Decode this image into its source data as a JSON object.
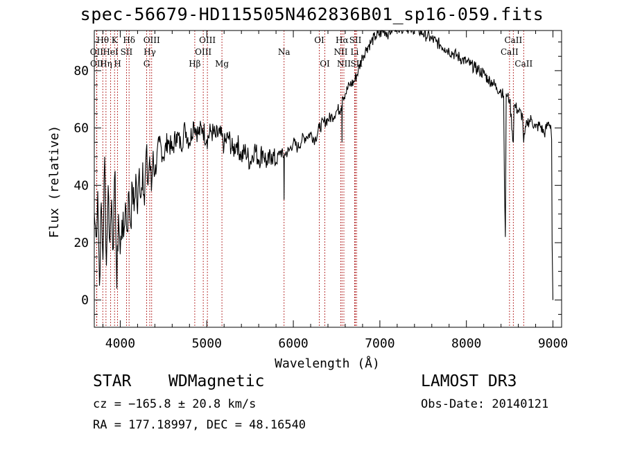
{
  "chart_data": {
    "type": "line",
    "title": "spec-56679-HD115505N462836B01_sp16-059.fits",
    "xlabel": "Wavelength (Å)",
    "ylabel": "Flux (relative)",
    "xlim": [
      3700,
      9100
    ],
    "ylim": [
      -9.5,
      94
    ],
    "x_ticks": [
      4000,
      5000,
      6000,
      7000,
      8000,
      9000
    ],
    "y_ticks": [
      0,
      20,
      40,
      60,
      80
    ],
    "series": [
      {
        "name": "flux",
        "x": [
          3700,
          3720,
          3740,
          3760,
          3780,
          3800,
          3820,
          3840,
          3860,
          3880,
          3900,
          3920,
          3940,
          3960,
          3980,
          4000,
          4020,
          4040,
          4060,
          4080,
          4100,
          4120,
          4140,
          4160,
          4180,
          4200,
          4220,
          4240,
          4260,
          4280,
          4300,
          4320,
          4340,
          4360,
          4380,
          4400,
          4450,
          4500,
          4550,
          4600,
          4650,
          4700,
          4750,
          4800,
          4850,
          4900,
          4950,
          5000,
          5050,
          5100,
          5150,
          5200,
          5250,
          5300,
          5350,
          5400,
          5450,
          5500,
          5550,
          5600,
          5650,
          5700,
          5750,
          5800,
          5850,
          5890,
          5893,
          5896,
          5900,
          5950,
          6000,
          6050,
          6100,
          6150,
          6200,
          6250,
          6300,
          6350,
          6400,
          6450,
          6500,
          6550,
          6560,
          6563,
          6566,
          6570,
          6600,
          6650,
          6700,
          6750,
          6800,
          6850,
          6900,
          6950,
          7000,
          7050,
          7100,
          7150,
          7200,
          7250,
          7300,
          7350,
          7400,
          7450,
          7500,
          7550,
          7600,
          7650,
          7700,
          7750,
          7800,
          7850,
          7900,
          7950,
          8000,
          8050,
          8100,
          8150,
          8200,
          8250,
          8300,
          8350,
          8400,
          8430,
          8440,
          8450,
          8460,
          8470,
          8500,
          8542,
          8550,
          8600,
          8650,
          8662,
          8700,
          8750,
          8800,
          8850,
          8900,
          8950,
          8975,
          8985,
          8990,
          9000
        ],
        "values": [
          30,
          22,
          38,
          5,
          34,
          14,
          50,
          12,
          40,
          20,
          35,
          18,
          45,
          4,
          30,
          16,
          28,
          22,
          34,
          24,
          38,
          26,
          40,
          31,
          44,
          30,
          46,
          36,
          48,
          33,
          52,
          40,
          50,
          38,
          52,
          44,
          55,
          50,
          56,
          52,
          58,
          54,
          60,
          55,
          62,
          58,
          60,
          56,
          59,
          57,
          58,
          54,
          57,
          52,
          55,
          50,
          52,
          48,
          53,
          49,
          52,
          47,
          51,
          48,
          52,
          50,
          35,
          50,
          51,
          52,
          55,
          53,
          56,
          57,
          58,
          56,
          60,
          62,
          63,
          64,
          66,
          67,
          68,
          55,
          70,
          71,
          72,
          75,
          76,
          80,
          85,
          88,
          90,
          92,
          93,
          94,
          93,
          95,
          96,
          95,
          96,
          94,
          95,
          94,
          93,
          92,
          91,
          90,
          89,
          88,
          87,
          86,
          85,
          84,
          83,
          82,
          81,
          80,
          79,
          77,
          76,
          74,
          73,
          71,
          40,
          22,
          72,
          71,
          70,
          55,
          68,
          66,
          64,
          55,
          62,
          63,
          60,
          61,
          58,
          62,
          61,
          56,
          20,
          0
        ]
      }
    ],
    "line_features": [
      {
        "label": "Hθ",
        "wavelength": 3798,
        "row": 1
      },
      {
        "label": "OII",
        "wavelength": 3727,
        "row": 2
      },
      {
        "label": "OII",
        "wavelength": 3729,
        "row": 3
      },
      {
        "label": "K",
        "wavelength": 3934,
        "row": 1
      },
      {
        "label": "HeI",
        "wavelength": 3889,
        "row": 2
      },
      {
        "label": "Hη",
        "wavelength": 3835,
        "row": 3
      },
      {
        "label": "Hδ",
        "wavelength": 4102,
        "row": 1
      },
      {
        "label": "SII",
        "wavelength": 4072,
        "row": 2
      },
      {
        "label": "H",
        "wavelength": 3969,
        "row": 3
      },
      {
        "label": "OIII",
        "wavelength": 4363,
        "row": 1
      },
      {
        "label": "Hγ",
        "wavelength": 4341,
        "row": 2
      },
      {
        "label": "G",
        "wavelength": 4305,
        "row": 3
      },
      {
        "label": "OIII",
        "wavelength": 5007,
        "row": 1
      },
      {
        "label": "OIII",
        "wavelength": 4959,
        "row": 2
      },
      {
        "label": "Hβ",
        "wavelength": 4861,
        "row": 3
      },
      {
        "label": "Mg",
        "wavelength": 5175,
        "row": 3
      },
      {
        "label": "Na",
        "wavelength": 5893,
        "row": 2
      },
      {
        "label": "OI",
        "wavelength": 6300,
        "row": 1
      },
      {
        "label": "OI",
        "wavelength": 6364,
        "row": 3
      },
      {
        "label": "Hα",
        "wavelength": 6563,
        "row": 1
      },
      {
        "label": "NII",
        "wavelength": 6548,
        "row": 2
      },
      {
        "label": "NII",
        "wavelength": 6584,
        "row": 3
      },
      {
        "label": "SII",
        "wavelength": 6717,
        "row": 1
      },
      {
        "label": "Li",
        "wavelength": 6708,
        "row": 2
      },
      {
        "label": "SII",
        "wavelength": 6731,
        "row": 3
      },
      {
        "label": "CaII",
        "wavelength": 8542,
        "row": 1
      },
      {
        "label": "CaII",
        "wavelength": 8498,
        "row": 2
      },
      {
        "label": "CaII",
        "wavelength": 8662,
        "row": 3
      }
    ]
  },
  "footer": {
    "object_class": "STAR",
    "object_subclass": "WDMagnetic",
    "survey": "LAMOST DR3",
    "cz": "cz = −165.8 ± 20.8 km/s",
    "obs_date": "Obs-Date: 20140121",
    "radec": "RA = 177.18997, DEC =  48.16540"
  }
}
